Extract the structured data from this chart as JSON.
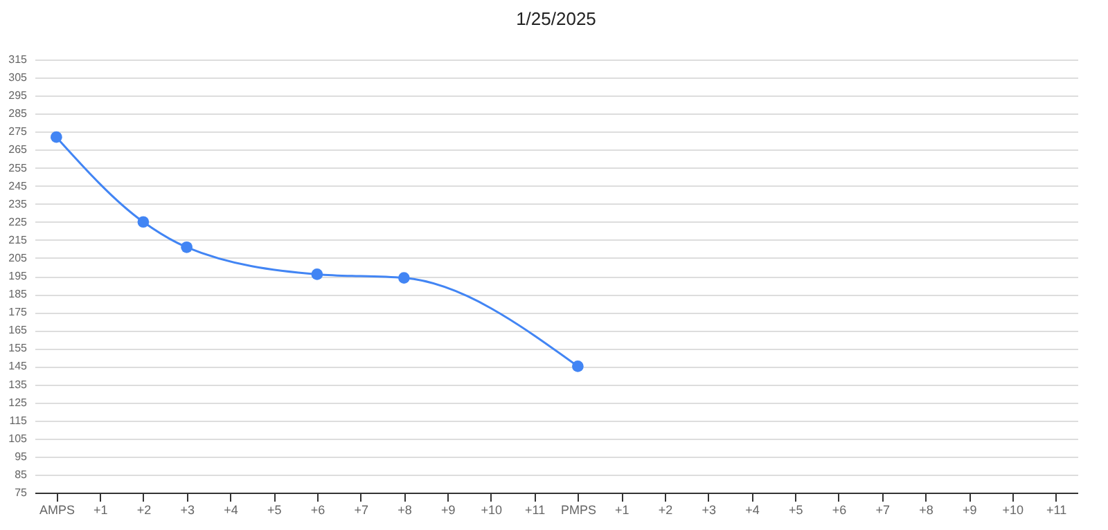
{
  "chart_data": {
    "type": "line",
    "title": "1/25/2025",
    "categories": [
      "AMPS",
      "+1",
      "+2",
      "+3",
      "+4",
      "+5",
      "+6",
      "+7",
      "+8",
      "+9",
      "+10",
      "+11",
      "PMPS",
      "+1",
      "+2",
      "+3",
      "+4",
      "+5",
      "+6",
      "+7",
      "+8",
      "+9",
      "+10",
      "+11"
    ],
    "series": [
      {
        "color": "#4285f4",
        "values": [
          272,
          null,
          225,
          211,
          null,
          null,
          196,
          null,
          194,
          null,
          null,
          null,
          145,
          null,
          null,
          null,
          null,
          null,
          null,
          null,
          null,
          null,
          null,
          null
        ]
      }
    ],
    "ylim": [
      75,
      315
    ],
    "yticks": [
      75,
      85,
      95,
      105,
      115,
      125,
      135,
      145,
      155,
      165,
      175,
      185,
      195,
      205,
      215,
      225,
      235,
      245,
      255,
      265,
      275,
      285,
      295,
      305,
      315
    ],
    "grid": "y",
    "legend": false,
    "marker": "circle",
    "line_style": "solid"
  }
}
